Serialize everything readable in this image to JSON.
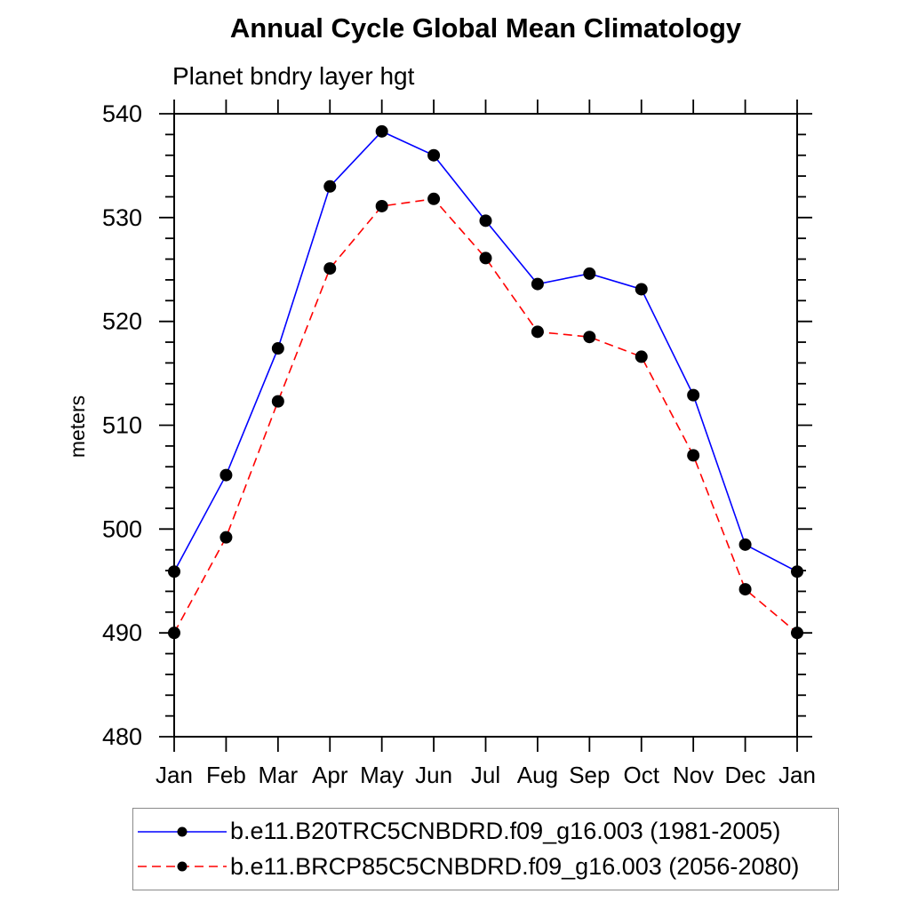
{
  "chart_data": {
    "type": "line",
    "title": "Annual Cycle Global Mean Climatology",
    "subtitle": "Planet bndry layer hgt",
    "ylabel": "meters",
    "xlabel": "",
    "x": [
      "Jan",
      "Feb",
      "Mar",
      "Apr",
      "May",
      "Jun",
      "Jul",
      "Aug",
      "Sep",
      "Oct",
      "Nov",
      "Dec",
      "Jan"
    ],
    "ylim": [
      480,
      540
    ],
    "y_major_step": 10,
    "y_minor_step": 2,
    "y_major_ticks": [
      480,
      490,
      500,
      510,
      520,
      530,
      540
    ],
    "grid": false,
    "legend_position": "bottom",
    "axis_color": "#000000",
    "background_color": "#ffffff",
    "series": [
      {
        "name": "b.e11.B20TRC5CNBDRD.f09_g16.003 (1981-2005)",
        "color": "#0000ff",
        "line_style": "solid",
        "marker": "circle",
        "marker_color": "#000000",
        "values": [
          495.9,
          505.2,
          517.4,
          533.0,
          538.3,
          536.0,
          529.7,
          523.6,
          524.6,
          523.1,
          512.9,
          498.5,
          495.9
        ]
      },
      {
        "name": "b.e11.BRCP85C5CNBDRD.f09_g16.003 (2056-2080)",
        "color": "#ff0000",
        "line_style": "dashed",
        "marker": "circle",
        "marker_color": "#000000",
        "values": [
          490.0,
          499.2,
          512.3,
          525.1,
          531.1,
          531.8,
          526.1,
          519.0,
          518.5,
          516.6,
          507.1,
          494.2,
          490.0
        ]
      }
    ]
  }
}
